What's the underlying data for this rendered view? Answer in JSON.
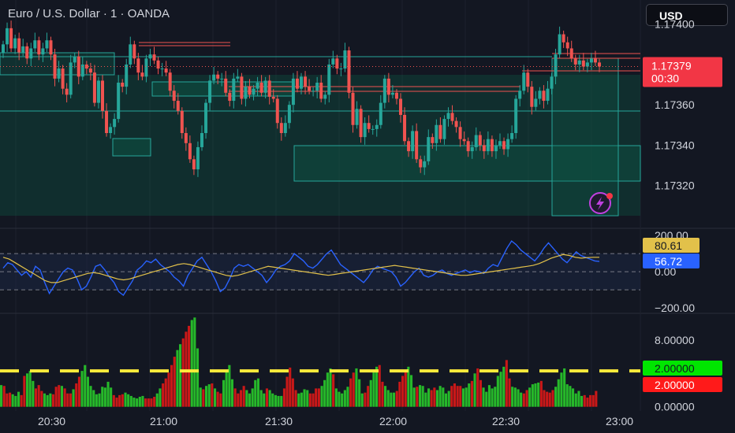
{
  "header": {
    "title": "Euro / U.S. Dollar · 1 · OANDA",
    "currency_button": "USD"
  },
  "colors": {
    "bg": "#131722",
    "up": "#26a69a",
    "down": "#ef5350",
    "cci": "#2962ff",
    "signal": "#e2c14a",
    "zone": "#0d5e4a",
    "vol_up": "#26b82a",
    "vol_down": "#c91818",
    "threshold": "#ffeb3b"
  },
  "chart_data": [
    {
      "type": "candlestick",
      "panel": "price",
      "y_ticks": [
        "1.17400",
        "1.17360",
        "1.17340",
        "1.17320"
      ],
      "ylim": [
        1.17305,
        1.17412
      ],
      "current_price": {
        "value": "1.17379",
        "countdown": "00:30"
      },
      "x_ticks": [
        "20:30",
        "21:00",
        "21:30",
        "22:00",
        "22:30",
        "23:00"
      ],
      "time_range": [
        "20:17",
        "22:46"
      ],
      "closes": [
        1.1739,
        1.17398,
        1.17388,
        1.17393,
        1.17386,
        1.17389,
        1.17383,
        1.17388,
        1.17392,
        1.17385,
        1.17388,
        1.17392,
        1.17385,
        1.17373,
        1.17378,
        1.17368,
        1.17365,
        1.17381,
        1.17384,
        1.17374,
        1.1738,
        1.17378,
        1.17376,
        1.17361,
        1.17372,
        1.17357,
        1.17346,
        1.17349,
        1.17353,
        1.17371,
        1.17369,
        1.1738,
        1.1739,
        1.17383,
        1.17376,
        1.17374,
        1.17383,
        1.17385,
        1.17382,
        1.17378,
        1.17378,
        1.17376,
        1.17367,
        1.17362,
        1.17357,
        1.17346,
        1.17341,
        1.17333,
        1.17328,
        1.17339,
        1.17346,
        1.17361,
        1.17372,
        1.17375,
        1.17373,
        1.17373,
        1.17366,
        1.17362,
        1.17373,
        1.17374,
        1.17363,
        1.17369,
        1.17365,
        1.17368,
        1.17371,
        1.17366,
        1.17372,
        1.17364,
        1.17363,
        1.17351,
        1.17346,
        1.17351,
        1.1736,
        1.17373,
        1.17368,
        1.17374,
        1.17369,
        1.17367,
        1.17367,
        1.17371,
        1.17363,
        1.17365,
        1.1738,
        1.17383,
        1.17378,
        1.17378,
        1.17387,
        1.17366,
        1.1735,
        1.17358,
        1.17344,
        1.17351,
        1.17348,
        1.17348,
        1.1735,
        1.17361,
        1.17373,
        1.17365,
        1.17366,
        1.17363,
        1.17355,
        1.17342,
        1.17337,
        1.17347,
        1.17333,
        1.17329,
        1.17332,
        1.17344,
        1.17341,
        1.1735,
        1.17343,
        1.17353,
        1.17356,
        1.17352,
        1.17349,
        1.17343,
        1.17342,
        1.17337,
        1.17339,
        1.17345,
        1.1734,
        1.17337,
        1.17343,
        1.17337,
        1.1734,
        1.17342,
        1.17338,
        1.17343,
        1.17346,
        1.17363,
        1.17367,
        1.17376,
        1.17369,
        1.17359,
        1.17363,
        1.17367,
        1.17362,
        1.17368,
        1.17374,
        1.17385,
        1.17395,
        1.17391,
        1.17388,
        1.17383,
        1.1738,
        1.17382,
        1.17379,
        1.17381,
        1.17383,
        1.17381,
        1.17379
      ]
    },
    {
      "type": "line",
      "panel": "cci",
      "y_ticks": [
        "200.00",
        "0.00",
        "−200.00"
      ],
      "ylim": [
        -230,
        240
      ],
      "bands": [
        100,
        0,
        -100
      ],
      "labels": {
        "signal": "80.61",
        "cci": "56.72"
      },
      "series": [
        {
          "role": "cci",
          "values": [
            20,
            50,
            40,
            10,
            -20,
            0,
            -30,
            30,
            10,
            -60,
            -120,
            -80,
            -40,
            0,
            20,
            10,
            -40,
            -100,
            -80,
            -30,
            30,
            40,
            10,
            -30,
            -60,
            -110,
            -130,
            -90,
            -50,
            10,
            30,
            60,
            50,
            70,
            40,
            20,
            0,
            -30,
            -50,
            -80,
            -20,
            20,
            60,
            80,
            40,
            0,
            -50,
            -110,
            -90,
            -40,
            20,
            40,
            30,
            40,
            20,
            0,
            -20,
            -60,
            -30,
            10,
            30,
            40,
            60,
            100,
            80,
            60,
            30,
            20,
            40,
            70,
            100,
            120,
            80,
            40,
            20,
            0,
            -20,
            -40,
            -60,
            -30,
            10,
            30,
            20,
            10,
            0,
            -30,
            -80,
            -60,
            -30,
            0,
            20,
            -20,
            -30,
            -20,
            0,
            10,
            -10,
            -20,
            -10,
            0,
            10,
            -5,
            5,
            0,
            -10,
            20,
            40,
            30,
            80,
            130,
            170,
            150,
            120,
            100,
            80,
            60,
            90,
            130,
            160,
            130,
            100,
            70,
            50,
            80,
            110,
            90,
            80,
            70,
            60,
            57
          ]
        },
        {
          "role": "signal",
          "values": [
            80,
            70,
            50,
            30,
            10,
            -10,
            -30,
            -50,
            -60,
            -60,
            -50,
            -40,
            -30,
            -20,
            -10,
            -5,
            -10,
            -20,
            -30,
            -40,
            -45,
            -40,
            -30,
            -20,
            -10,
            0,
            10,
            20,
            30,
            40,
            45,
            40,
            30,
            20,
            10,
            0,
            -10,
            -20,
            -25,
            -20,
            -10,
            0,
            10,
            20,
            30,
            25,
            20,
            15,
            10,
            5,
            0,
            -5,
            -10,
            -15,
            -20,
            -15,
            -10,
            -5,
            0,
            5,
            10,
            15,
            20,
            25,
            30,
            35,
            30,
            25,
            20,
            15,
            10,
            5,
            0,
            -5,
            -10,
            -15,
            -20,
            -20,
            -15,
            -10,
            -5,
            0,
            5,
            10,
            15,
            20,
            25,
            30,
            35,
            45,
            60,
            75,
            85,
            95,
            90,
            80,
            75,
            78,
            80,
            80
          ]
        }
      ]
    },
    {
      "type": "bar",
      "panel": "volume",
      "y_ticks": [
        "8.00000",
        "0.00000"
      ],
      "ylim": [
        -0.5,
        11.2
      ],
      "threshold": 4.3,
      "labels": {
        "up": "2.00000",
        "down": "2.00000"
      },
      "volumes": [
        2.6,
        2.5,
        1.6,
        1.7,
        1.5,
        1.3,
        1.8,
        1.4,
        3.7,
        4.0,
        4.3,
        3.1,
        2.2,
        2.6,
        1.9,
        1.6,
        1.4,
        1.6,
        1.5,
        2.4,
        2.6,
        2.5,
        2.2,
        1.6,
        1.6,
        2.1,
        2.8,
        3.6,
        4.3,
        5.0,
        3.6,
        2.5,
        2.0,
        1.5,
        1.6,
        2.4,
        2.3,
        3.0,
        2.3,
        1.4,
        1.1,
        1.4,
        1.5,
        1.7,
        1.5,
        1.3,
        1.1,
        1.0,
        1.2,
        1.3,
        1.0,
        1.0,
        1.0,
        1.2,
        1.6,
        2.2,
        2.8,
        3.4,
        4.1,
        5.0,
        6.0,
        6.8,
        7.5,
        8.2,
        9.0,
        9.7,
        10.4,
        10.7,
        7.0,
        2.3,
        2.1,
        2.5,
        2.7,
        2.8,
        2.2,
        1.8,
        1.6,
        3.2,
        4.3,
        5.0,
        3.3,
        2.2,
        1.6,
        2.0,
        2.5,
        2.0,
        1.6,
        2.2,
        3.2,
        3.4,
        2.0,
        1.6,
        2.2,
        2.0,
        1.6,
        1.4,
        1.3,
        1.3,
        2.2,
        3.6,
        4.7,
        3.4,
        2.0,
        1.6,
        1.7,
        2.1,
        2.0,
        1.6,
        1.6,
        2.2,
        2.2,
        2.5,
        3.2,
        4.1,
        4.6,
        3.9,
        2.2,
        1.8,
        1.6,
        2.0,
        2.4,
        3.4,
        4.1,
        4.6,
        3.3,
        1.6,
        1.7,
        2.5,
        3.2,
        4.3,
        4.8,
        5.0,
        3.0,
        2.5,
        2.0,
        1.7,
        1.7,
        1.9,
        3.0,
        3.7,
        4.4,
        4.8,
        3.8,
        2.3,
        2.4,
        2.6,
        2.5,
        1.7,
        2.2,
        2.0,
        2.3,
        2.0,
        2.5,
        2.3,
        1.6,
        1.9,
        2.5,
        2.8,
        2.5,
        2.5,
        2.2,
        2.3,
        2.8,
        3.1,
        4.0,
        4.6,
        3.2,
        2.3,
        1.8,
        2.6,
        2.2,
        2.4,
        3.7,
        4.2,
        4.8,
        5.6,
        3.4,
        2.4,
        2.3,
        2.1,
        1.7,
        1.6,
        2.0,
        2.3,
        2.7,
        2.8,
        2.9,
        3.1,
        2.0,
        1.8,
        1.7,
        2.0,
        2.4,
        3.3,
        4.1,
        4.6,
        2.7,
        2.5,
        2.2,
        1.6,
        1.9,
        1.3,
        1.4,
        1.1,
        1.4,
        1.4,
        1.9
      ],
      "directions": "uddduuudduuuddduuudddudddudduuuuuuuuuuudddduuuuuuudddduuddddduuddduuuuduududduuuudddduuuuuuuduuuuuddddduuuudddduuuuduuuuudduuudduuudduuuudddduuuduuuudduuuuudddduuududduuuuuuuudduuuudduuuuddddduuuuuuuuuu"
    }
  ]
}
